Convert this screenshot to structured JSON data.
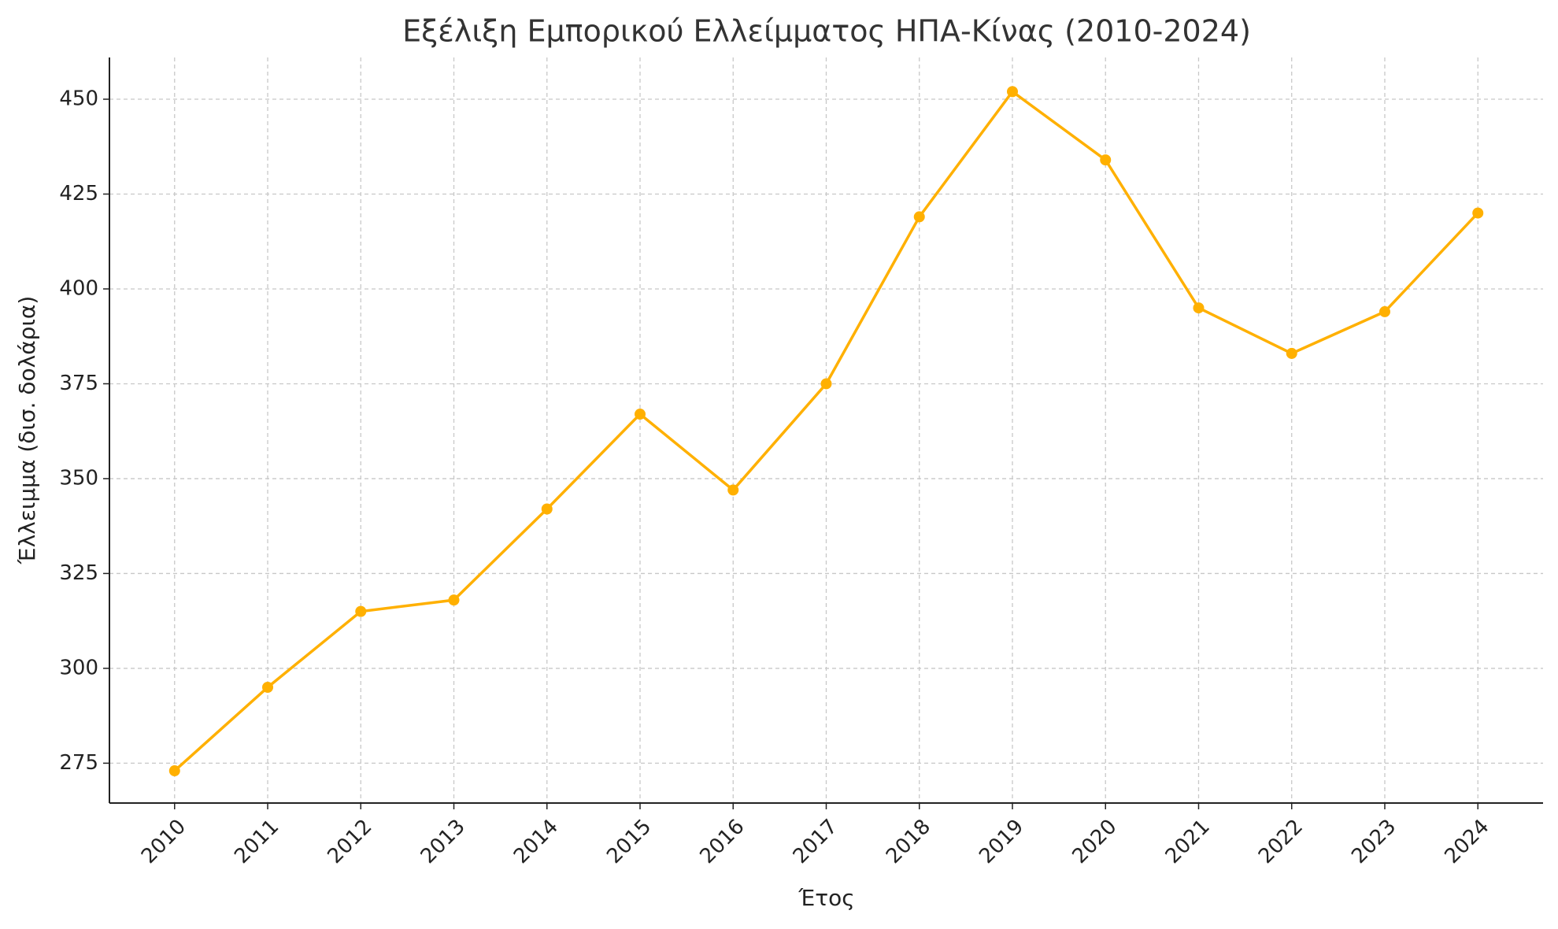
{
  "chart_data": {
    "type": "line",
    "title": "Εξέλιξη Εμπορικού Ελλείμματος ΗΠΑ-Κίνας (2010-2024)",
    "xlabel": "Έτος",
    "ylabel": "Έλλειμμα (δισ. δολάρια)",
    "x": [
      2010,
      2011,
      2012,
      2013,
      2014,
      2015,
      2016,
      2017,
      2018,
      2019,
      2020,
      2021,
      2022,
      2023,
      2024
    ],
    "values": [
      273,
      295,
      315,
      318,
      342,
      367,
      347,
      375,
      419,
      452,
      434,
      395,
      383,
      394,
      420
    ],
    "color": "#ffb000",
    "xlim": [
      2009.3,
      2024.7
    ],
    "xticks": [
      2010,
      2011,
      2012,
      2013,
      2014,
      2015,
      2016,
      2017,
      2018,
      2019,
      2020,
      2021,
      2022,
      2023,
      2024
    ],
    "ylim": [
      264.5,
      461
    ],
    "yticks": [
      275,
      300,
      325,
      350,
      375,
      400,
      425,
      450
    ],
    "grid": true
  }
}
